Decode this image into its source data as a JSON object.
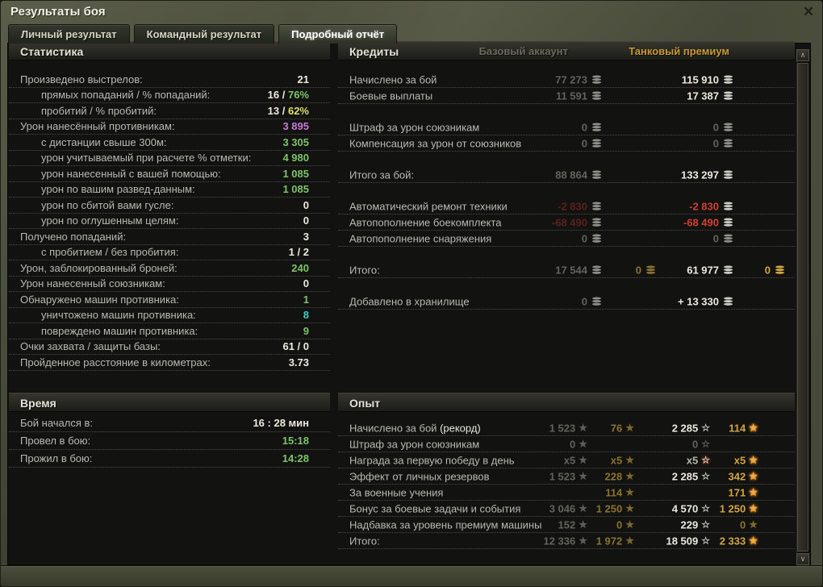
{
  "window": {
    "title": "Результаты боя",
    "close_icon": "✕"
  },
  "tabs": [
    {
      "label": "Личный результат",
      "active": false
    },
    {
      "label": "Командный результат",
      "active": false
    },
    {
      "label": "Подробный отчёт",
      "active": true
    }
  ],
  "colors": {
    "white": "#eceade",
    "dim": "#63635c",
    "green": "#7dc46a",
    "yellow": "#dfdf6e",
    "purple": "#c879d6",
    "cyan": "#3ecfc4",
    "red": "#d24034",
    "dimred": "#5e201b",
    "gold": "#d2a63e",
    "dimgold": "#8a7330",
    "xgray": "#b4b4ac",
    "star_base": "#5f5f57",
    "star_base_gold": "#7d6a2c",
    "star_prem": "#cacac3",
    "star_gold": "#f2a93c",
    "coin_silver": "#cdcdc6",
    "coin_silver_dim": "#8f8f88",
    "coin_gold": "#d2a63e",
    "coin_gold_dim": "#8a7330",
    "accent_premium_header": "#c89a35"
  },
  "scrollbar": {
    "up_icon": "∧",
    "down_icon": "∨"
  },
  "statistics": {
    "title": "Статистика",
    "rows": [
      {
        "label": "Произведено выстрелов:",
        "indent": 0,
        "parts": [
          {
            "t": "21",
            "c": "white"
          }
        ]
      },
      {
        "label": "прямых попаданий / % попаданий:",
        "indent": 1,
        "parts": [
          {
            "t": "16 / ",
            "c": "white"
          },
          {
            "t": "76%",
            "c": "green"
          }
        ]
      },
      {
        "label": "пробитий / % пробитий:",
        "indent": 1,
        "parts": [
          {
            "t": "13 / ",
            "c": "white"
          },
          {
            "t": "62%",
            "c": "yellow"
          }
        ]
      },
      {
        "label": "Урон нанесённый противникам:",
        "indent": 0,
        "parts": [
          {
            "t": "3 895",
            "c": "purple"
          }
        ]
      },
      {
        "label": "с дистанции свыше 300м:",
        "indent": 1,
        "parts": [
          {
            "t": "3 305",
            "c": "green"
          }
        ]
      },
      {
        "label": "урон учитываемый при расчете % отметки:",
        "indent": 1,
        "parts": [
          {
            "t": "4 980",
            "c": "green"
          }
        ]
      },
      {
        "label": "урон нанесенный с вашей помощью:",
        "indent": 1,
        "parts": [
          {
            "t": "1 085",
            "c": "green"
          }
        ]
      },
      {
        "label": "урон по вашим развед-данным:",
        "indent": 1,
        "parts": [
          {
            "t": "1 085",
            "c": "green"
          }
        ]
      },
      {
        "label": "урон по сбитой вами гусле:",
        "indent": 1,
        "parts": [
          {
            "t": "0",
            "c": "white"
          }
        ]
      },
      {
        "label": "урон по оглушенным целям:",
        "indent": 1,
        "parts": [
          {
            "t": "0",
            "c": "white"
          }
        ]
      },
      {
        "label": "Получено попаданий:",
        "indent": 0,
        "parts": [
          {
            "t": "3",
            "c": "white"
          }
        ]
      },
      {
        "label": "с пробитием / без пробития:",
        "indent": 1,
        "parts": [
          {
            "t": "1 / 2",
            "c": "white"
          }
        ]
      },
      {
        "label": "Урон, заблокированный броней:",
        "indent": 0,
        "parts": [
          {
            "t": "240",
            "c": "green"
          }
        ]
      },
      {
        "label": "Урон нанесенный союзникам:",
        "indent": 0,
        "parts": [
          {
            "t": "0",
            "c": "white"
          }
        ]
      },
      {
        "label": "Обнаружено машин противника:",
        "indent": 0,
        "parts": [
          {
            "t": "1",
            "c": "green"
          }
        ]
      },
      {
        "label": "уничтожено машин противника:",
        "indent": 1,
        "parts": [
          {
            "t": "8",
            "c": "cyan"
          }
        ]
      },
      {
        "label": "повреждено машин противника:",
        "indent": 1,
        "parts": [
          {
            "t": "9",
            "c": "green"
          }
        ]
      },
      {
        "label": "Очки захвата / защиты базы:",
        "indent": 0,
        "parts": [
          {
            "t": "61 / 0",
            "c": "white"
          }
        ]
      },
      {
        "label": "Пройденное расстояние в километрах:",
        "indent": 0,
        "parts": [
          {
            "t": "3.73",
            "c": "white"
          }
        ]
      }
    ]
  },
  "time": {
    "title": "Время",
    "rows": [
      {
        "label": "Бой начался в:",
        "parts": [
          {
            "t": "16 : 28 мин",
            "c": "white"
          }
        ]
      },
      {
        "label": "Провел в бою:",
        "parts": [
          {
            "t": "15:18",
            "c": "green"
          }
        ]
      },
      {
        "label": "Прожил в бою:",
        "parts": [
          {
            "t": "14:28",
            "c": "green"
          }
        ]
      }
    ]
  },
  "credits": {
    "title": "Кредиты",
    "columns": {
      "base": "Базовый аккаунт",
      "premium": "Танковый премиум"
    },
    "slot_offsets": [
      239,
      172,
      76,
      12
    ],
    "rows": [
      {
        "label": "Начислено за бой",
        "cells": [
          {
            "slot": 0,
            "v": "77 273",
            "c": "dim",
            "i": "coin_silver_dim"
          },
          {
            "slot": 2,
            "v": "115 910",
            "c": "white",
            "i": "coin_silver"
          }
        ]
      },
      {
        "label": "Боевые выплаты",
        "cells": [
          {
            "slot": 0,
            "v": "11 591",
            "c": "dim",
            "i": "coin_silver_dim"
          },
          {
            "slot": 2,
            "v": "17 387",
            "c": "white",
            "i": "coin_silver"
          }
        ]
      },
      {
        "spacer": true
      },
      {
        "label": "Штраф за урон союзникам",
        "cells": [
          {
            "slot": 0,
            "v": "0",
            "c": "dim",
            "i": "coin_silver_dim"
          },
          {
            "slot": 2,
            "v": "0",
            "c": "dim",
            "i": "coin_silver_dim"
          }
        ]
      },
      {
        "label": "Компенсация за урон от союзников",
        "cells": [
          {
            "slot": 0,
            "v": "0",
            "c": "dim",
            "i": "coin_silver_dim"
          },
          {
            "slot": 2,
            "v": "0",
            "c": "dim",
            "i": "coin_silver_dim"
          }
        ]
      },
      {
        "spacer": true
      },
      {
        "label": "Итого за бой:",
        "cells": [
          {
            "slot": 0,
            "v": "88 864",
            "c": "dim",
            "i": "coin_silver_dim"
          },
          {
            "slot": 2,
            "v": "133 297",
            "c": "white",
            "i": "coin_silver"
          }
        ]
      },
      {
        "spacer": true
      },
      {
        "label": "Автоматический ремонт техники",
        "cells": [
          {
            "slot": 0,
            "v": "-2 830",
            "c": "dimred",
            "i": "coin_silver_dim"
          },
          {
            "slot": 2,
            "v": "-2 830",
            "c": "red",
            "i": "coin_silver"
          }
        ]
      },
      {
        "label": "Автопополнение боекомплекта",
        "cells": [
          {
            "slot": 0,
            "v": "-68 490",
            "c": "dimred",
            "i": "coin_silver_dim"
          },
          {
            "slot": 2,
            "v": "-68 490",
            "c": "red",
            "i": "coin_silver"
          }
        ]
      },
      {
        "label": "Автопополнение снаряжения",
        "cells": [
          {
            "slot": 0,
            "v": "0",
            "c": "dim",
            "i": "coin_silver_dim"
          },
          {
            "slot": 2,
            "v": "0",
            "c": "dim",
            "i": "coin_silver_dim"
          }
        ]
      },
      {
        "spacer": true
      },
      {
        "label": "Итого:",
        "cells": [
          {
            "slot": 0,
            "v": "17 544",
            "c": "dim",
            "i": "coin_silver_dim"
          },
          {
            "slot": 1,
            "v": "0",
            "c": "dimgold",
            "i": "coin_gold_dim"
          },
          {
            "slot": 2,
            "v": "61 977",
            "c": "white",
            "i": "coin_silver"
          },
          {
            "slot": 3,
            "v": "0",
            "c": "gold",
            "i": "coin_gold"
          }
        ]
      },
      {
        "spacer": true
      },
      {
        "label": "Добавлено в хранилище",
        "cells": [
          {
            "slot": 0,
            "v": "0",
            "c": "dim",
            "i": "coin_silver_dim"
          },
          {
            "slot": 2,
            "v": "+ 13 330",
            "c": "white",
            "i": "coin_silver"
          }
        ]
      }
    ]
  },
  "experience": {
    "title": "Опыт",
    "slot_offsets": [
      257,
      199,
      105,
      46
    ],
    "rows": [
      {
        "label": "Начислено за бой ",
        "label2": "(рекорд)",
        "cells": [
          {
            "slot": 0,
            "v": "1 523",
            "c": "dim",
            "s": "bs"
          },
          {
            "slot": 1,
            "v": "76",
            "c": "dimgold",
            "s": "bg"
          },
          {
            "slot": 2,
            "v": "2 285",
            "c": "white",
            "s": "ps"
          },
          {
            "slot": 3,
            "v": "114",
            "c": "gold",
            "s": "pg"
          }
        ]
      },
      {
        "label": "Штраф за урон союзникам",
        "cells": [
          {
            "slot": 0,
            "v": "0",
            "c": "dim",
            "s": "bs"
          },
          {
            "slot": 2,
            "v": "0",
            "c": "dim",
            "s": "psd"
          }
        ]
      },
      {
        "label": "Награда за первую победу в день",
        "cells": [
          {
            "slot": 0,
            "v": "x5",
            "c": "dim",
            "s": "bs"
          },
          {
            "slot": 1,
            "v": "x5",
            "c": "dimgold",
            "s": "bg"
          },
          {
            "slot": 2,
            "v": "x5",
            "c": "xgray",
            "s": "pr"
          },
          {
            "slot": 3,
            "v": "x5",
            "c": "gold",
            "s": "pg"
          }
        ]
      },
      {
        "label": "Эффект от личных резервов",
        "cells": [
          {
            "slot": 0,
            "v": "1 523",
            "c": "dim",
            "s": "bs"
          },
          {
            "slot": 1,
            "v": "228",
            "c": "dimgold",
            "s": "bg"
          },
          {
            "slot": 2,
            "v": "2 285",
            "c": "white",
            "s": "ps"
          },
          {
            "slot": 3,
            "v": "342",
            "c": "gold",
            "s": "pg"
          }
        ]
      },
      {
        "label": "За военные учения",
        "cells": [
          {
            "slot": 1,
            "v": "114",
            "c": "dimgold",
            "s": "bg"
          },
          {
            "slot": 3,
            "v": "171",
            "c": "gold",
            "s": "pg"
          }
        ]
      },
      {
        "label": "Бонус за боевые задачи и события",
        "cells": [
          {
            "slot": 0,
            "v": "3 046",
            "c": "dim",
            "s": "bs"
          },
          {
            "slot": 1,
            "v": "1 250",
            "c": "dimgold",
            "s": "bg"
          },
          {
            "slot": 2,
            "v": "4 570",
            "c": "white",
            "s": "ps"
          },
          {
            "slot": 3,
            "v": "1 250",
            "c": "gold",
            "s": "pg"
          }
        ]
      },
      {
        "label": "Надбавка за уровень премиум машины",
        "cells": [
          {
            "slot": 0,
            "v": "152",
            "c": "dim",
            "s": "bs"
          },
          {
            "slot": 1,
            "v": "0",
            "c": "dimgold",
            "s": "bg"
          },
          {
            "slot": 2,
            "v": "229",
            "c": "white",
            "s": "ps"
          },
          {
            "slot": 3,
            "v": "0",
            "c": "dimgold",
            "s": "pgd"
          }
        ]
      },
      {
        "label": "Итого:",
        "cells": [
          {
            "slot": 0,
            "v": "12 336",
            "c": "dim",
            "s": "bs"
          },
          {
            "slot": 1,
            "v": "1 972",
            "c": "dimgold",
            "s": "bg"
          },
          {
            "slot": 2,
            "v": "18 509",
            "c": "white",
            "s": "ps"
          },
          {
            "slot": 3,
            "v": "2 333",
            "c": "gold",
            "s": "pg"
          }
        ]
      }
    ]
  },
  "star_defs": {
    "bs": {
      "glyph": "★",
      "color": "star_base"
    },
    "bg": {
      "glyph": "★",
      "color": "star_base_gold"
    },
    "ps": {
      "glyph": "☆",
      "color": "star_prem"
    },
    "psd": {
      "glyph": "☆",
      "color": "dim"
    },
    "pg": {
      "glyph": "★",
      "color": "star_gold",
      "glow": "0 0 4px #ff8a1e, 0 0 2px #ffc96a"
    },
    "pgd": {
      "glyph": "★",
      "color": "star_base_gold"
    },
    "pr": {
      "glyph": "☆",
      "color": "star_prem",
      "glow": "0 0 4px #ff4a1e"
    }
  }
}
